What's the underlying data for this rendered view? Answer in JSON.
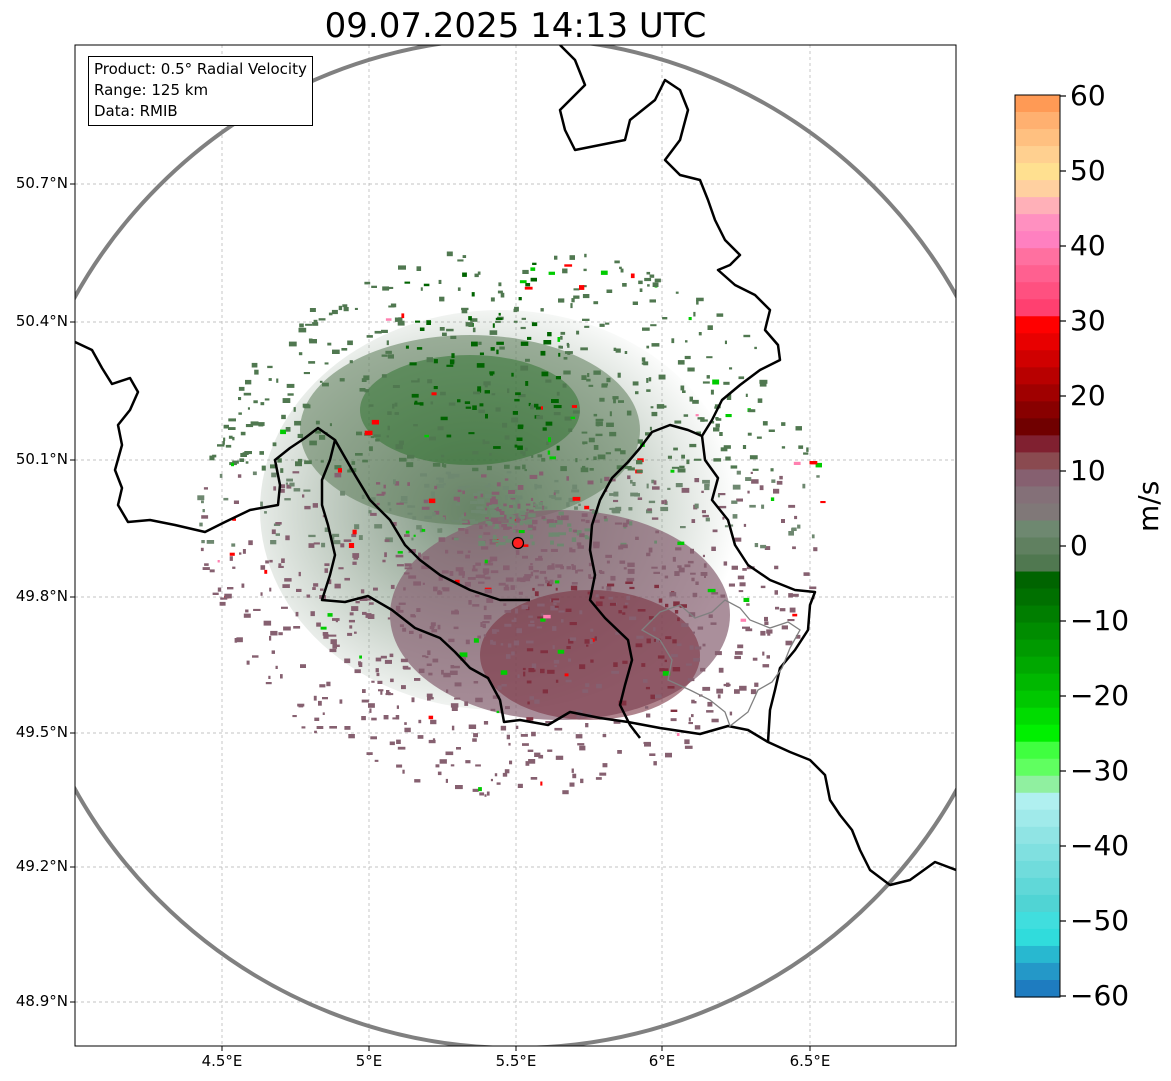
{
  "title": "09.07.2025 14:13 UTC",
  "info": {
    "product": "Product: 0.5° Radial Velocity",
    "range": "Range: 125 km",
    "source": "Data: RMIB"
  },
  "latitude_labels": [
    "50.7°N",
    "50.4°N",
    "50.1°N",
    "49.8°N",
    "49.5°N",
    "49.2°N",
    "48.9°N"
  ],
  "longitude_labels": [
    "4.5°E",
    "5°E",
    "5.5°E",
    "6°E",
    "6.5°E"
  ],
  "colorbar": {
    "unit": "m/s",
    "ticks": [
      "60",
      "50",
      "40",
      "30",
      "20",
      "10",
      "0",
      "−10",
      "−20",
      "−30",
      "−40",
      "−50",
      "−60"
    ],
    "colors": [
      "#ff9a55",
      "#ffb070",
      "#ffc080",
      "#ffd090",
      "#ffe090",
      "#ffd0a0",
      "#ffb0b8",
      "#ff90c0",
      "#ff80c0",
      "#ff70a0",
      "#ff6090",
      "#ff5080",
      "#ff4070",
      "#ff0000",
      "#e80000",
      "#d00000",
      "#b80000",
      "#a00000",
      "#880000",
      "#700000",
      "#802030",
      "#8a4a50",
      "#866070",
      "#847078",
      "#807878",
      "#6e8870",
      "#608060",
      "#507850",
      "#006400",
      "#007000",
      "#007e00",
      "#008c00",
      "#009a00",
      "#00a800",
      "#00b800",
      "#00c800",
      "#00dc00",
      "#00f000",
      "#40ff40",
      "#60ff60",
      "#90f0a0",
      "#b0f0f0",
      "#a0eaea",
      "#90e4e4",
      "#80e0e0",
      "#70dcdc",
      "#60d8d8",
      "#50d4d4",
      "#40dede",
      "#30dcdc",
      "#28b8d0",
      "#2498c8",
      "#1e7cc0"
    ]
  },
  "radar": {
    "site_marker": "radar-site",
    "colors": {
      "dark_green": "#006400",
      "mid_green": "#507850",
      "grey_green": "#6e8870",
      "mauve": "#866070",
      "maroon": "#803040",
      "bright_green": "#00cc00",
      "red": "#ff0000",
      "pink": "#ff80b0"
    }
  }
}
